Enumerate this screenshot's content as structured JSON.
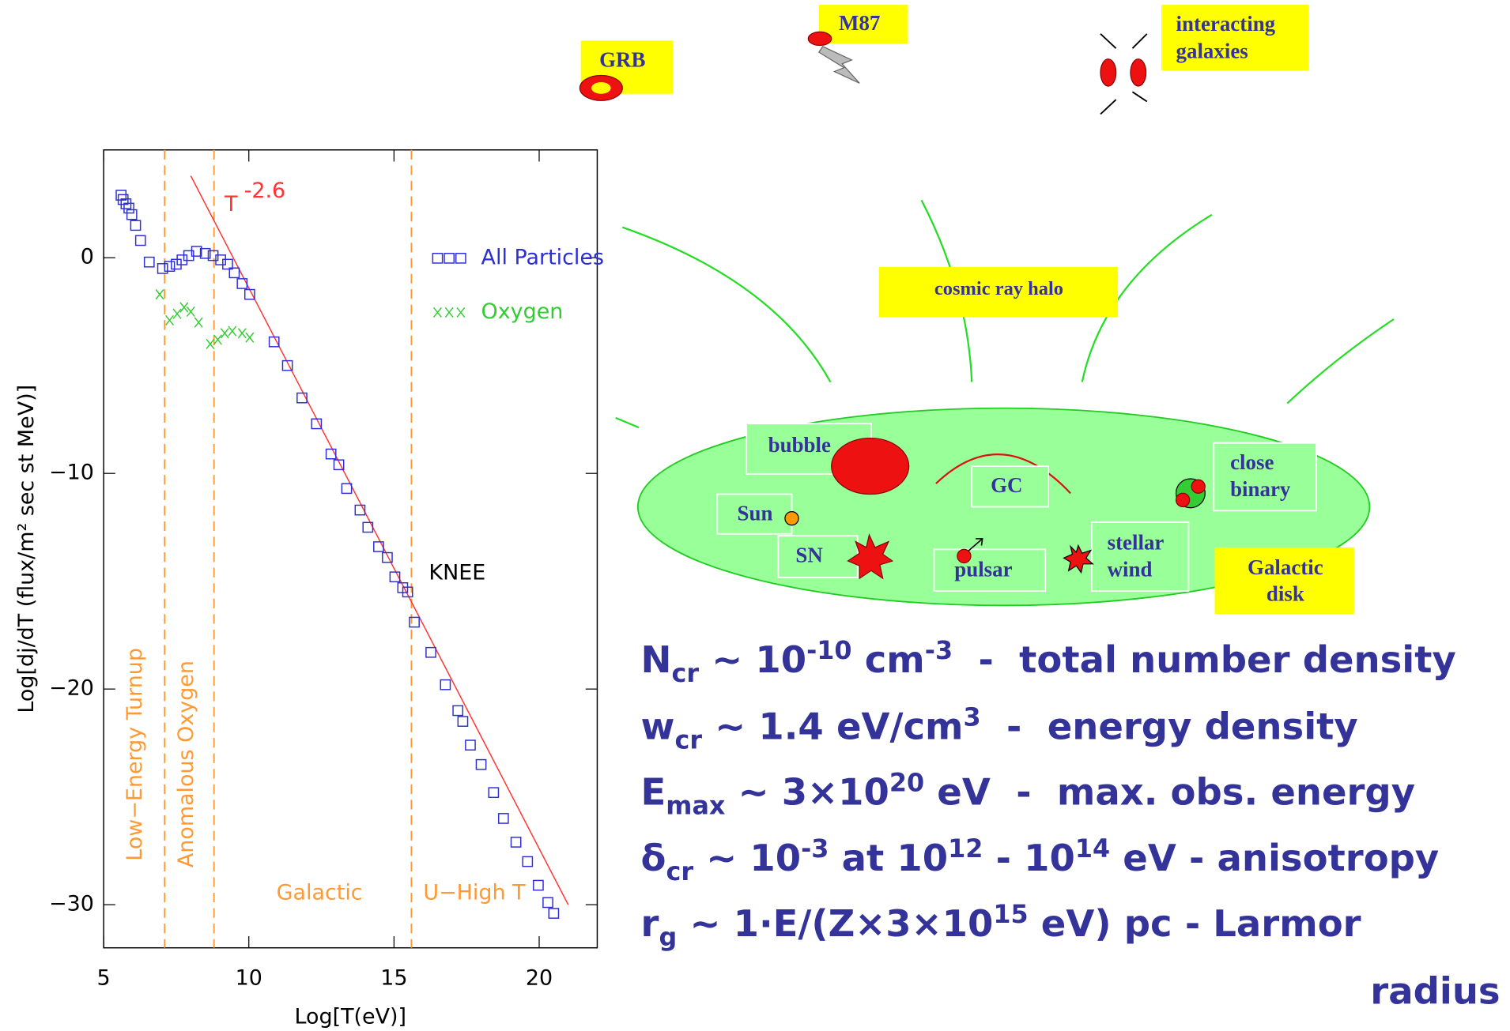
{
  "chart_data": {
    "type": "scatter",
    "xlabel": "Log[T(eV)]",
    "ylabel": "Log[dj/dT (flux/m² sec st MeV)]",
    "xlim": [
      5,
      22
    ],
    "ylim": [
      -32,
      5
    ],
    "xticks": [
      5,
      10,
      15,
      20
    ],
    "yticks": [
      0,
      {
        "value": -10,
        "label": "−10"
      },
      {
        "value": -20,
        "label": "−20"
      },
      {
        "value": -30,
        "label": "−30"
      }
    ],
    "series": [
      {
        "name": "All Particles",
        "color": "#2e2ed6",
        "marker": "square",
        "x": [
          5.6,
          5.67,
          5.77,
          5.87,
          5.97,
          6.1,
          6.27,
          6.57,
          7.03,
          7.27,
          7.5,
          7.7,
          7.93,
          8.2,
          8.5,
          8.77,
          9.03,
          9.27,
          9.5,
          9.77,
          10.03,
          10.87,
          11.33,
          11.83,
          12.33,
          12.83,
          13.1,
          13.37,
          13.83,
          14.1,
          14.47,
          14.77,
          15.03,
          15.3,
          15.47,
          15.7,
          16.27,
          16.77,
          17.2,
          17.37,
          17.63,
          18.0,
          18.43,
          18.77,
          19.2,
          19.6,
          19.97,
          20.3,
          20.5
        ],
        "values": [
          2.9,
          2.7,
          2.5,
          2.3,
          2.0,
          1.5,
          0.8,
          -0.2,
          -0.5,
          -0.4,
          -0.3,
          -0.1,
          0.1,
          0.3,
          0.2,
          0.1,
          -0.1,
          -0.3,
          -0.7,
          -1.2,
          -1.7,
          -3.9,
          -5.0,
          -6.5,
          -7.7,
          -9.1,
          -9.6,
          -10.7,
          -11.7,
          -12.5,
          -13.4,
          -13.9,
          -14.8,
          -15.3,
          -15.5,
          -16.9,
          -18.3,
          -19.8,
          -21.0,
          -21.5,
          -22.6,
          -23.5,
          -24.8,
          -26.0,
          -27.1,
          -28.0,
          -29.1,
          -29.9,
          -30.4
        ]
      },
      {
        "name": "Oxygen",
        "color": "#33cc33",
        "marker": "x",
        "x": [
          6.93,
          7.27,
          7.53,
          7.77,
          8.0,
          8.27,
          8.67,
          8.93,
          9.17,
          9.43,
          9.77,
          10.03
        ],
        "values": [
          -1.7,
          -2.9,
          -2.6,
          -2.3,
          -2.5,
          -3.0,
          -4.0,
          -3.8,
          -3.5,
          -3.4,
          -3.5,
          -3.7
        ]
      }
    ],
    "fit_line": {
      "label": "T",
      "exponent": "-2.6",
      "color": "#ff3333",
      "x": [
        8.0,
        21.0
      ],
      "y": [
        3.8,
        -30.0
      ]
    },
    "vlines": {
      "color": "#ff9933",
      "x": [
        7.1,
        8.8,
        15.6
      ]
    },
    "regions": [
      "Low−Energy Turnup",
      "Anomalous Oxygen",
      "Galactic",
      "U−High T"
    ],
    "annotation": "KNEE"
  },
  "diagram": {
    "grb": "GRB",
    "m87": "M87",
    "interacting": [
      "interacting",
      "galaxies"
    ],
    "halo": "cosmic ray halo",
    "bubble": "bubble",
    "gc": "GC",
    "binary": [
      "close",
      "binary"
    ],
    "sun": "Sun",
    "sn": "SN",
    "pulsar": "pulsar",
    "wind": [
      "stellar",
      "wind"
    ],
    "disk": [
      "Galactic",
      "disk"
    ]
  },
  "formulas": [
    [
      {
        "text": "N"
      },
      {
        "text": "cr",
        "style": "sub"
      },
      {
        "text": " ~ 10"
      },
      {
        "text": "-10",
        "style": "sup"
      },
      {
        "text": " cm"
      },
      {
        "text": "-3",
        "style": "sup"
      },
      {
        "text": "  -  total number density"
      }
    ],
    [
      {
        "text": "w"
      },
      {
        "text": "cr",
        "style": "sub"
      },
      {
        "text": " ~ 1.4 eV/cm"
      },
      {
        "text": "3",
        "style": "sup"
      },
      {
        "text": "  -  energy density"
      }
    ],
    [
      {
        "text": "E"
      },
      {
        "text": "max",
        "style": "sub"
      },
      {
        "text": " ~ 3×10"
      },
      {
        "text": "20",
        "style": "sup"
      },
      {
        "text": " eV  -  max. obs. energy"
      }
    ],
    [
      {
        "text": "δ"
      },
      {
        "text": "cr",
        "style": "sub"
      },
      {
        "text": " ~ 10"
      },
      {
        "text": "-3",
        "style": "sup"
      },
      {
        "text": " at 10"
      },
      {
        "text": "12",
        "style": "sup"
      },
      {
        "text": " - 10"
      },
      {
        "text": "14",
        "style": "sup"
      },
      {
        "text": " eV - anisotropy"
      }
    ],
    [
      {
        "text": "r"
      },
      {
        "text": "g",
        "style": "sub"
      },
      {
        "text": " ~ 1·E/(Z×3×10"
      },
      {
        "text": "15",
        "style": "sup"
      },
      {
        "text": " eV) pc - Larmor"
      }
    ],
    [
      {
        "text": "radius"
      }
    ]
  ]
}
